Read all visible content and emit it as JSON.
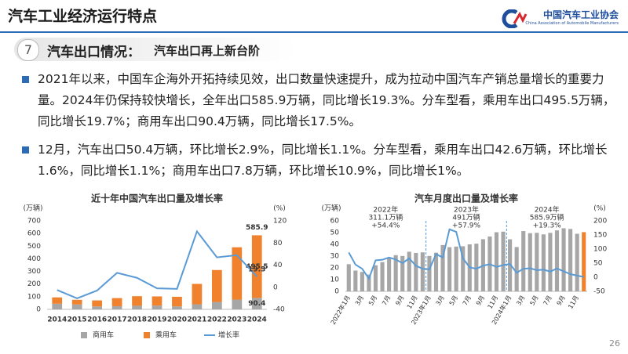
{
  "header": {
    "title": "汽车工业经济运行特点",
    "org_name": "中国汽车工业协会",
    "org_name_en": "China Association of Automobile Manufacturers"
  },
  "section": {
    "number": "7",
    "title": "汽车出口情况：",
    "subtitle": "汽车出口再上新台阶"
  },
  "bullets": [
    "2021年以来，中国车企海外开拓持续见效，出口数量快速提升，成为拉动中国汽车产销总量增长的重要力量。2024年仍保持较快增长，全年出口585.9万辆，同比增长19.3%。分车型看，乘用车出口495.5万辆，同比增长19.7%；商用车出口90.4万辆，同比增长17.5%。",
    "12月，汽车出口50.4万辆，环比增长2.9%，同比增长1.1%。分车型看，乘用车出口42.6万辆，环比增长1.6%，同比增长1.1%；商用车出口7.8万辆，环比增长10.9%，同比增长1%。"
  ],
  "chart_data": [
    {
      "type": "bar",
      "stacked": true,
      "title": "近十年中国汽车出口量及增长率",
      "y_label": "(万辆)",
      "y2_label": "(%)",
      "categories": [
        "2014",
        "2015",
        "2016",
        "2017",
        "2018",
        "2019",
        "2020",
        "2021",
        "2022",
        "2023",
        "2024"
      ],
      "series": [
        {
          "name": "商用车",
          "color": "#a6a6a6",
          "values": [
            44.6,
            38.7,
            23.1,
            25.1,
            28.3,
            29.9,
            23.5,
            40.1,
            58.2,
            77.1,
            90.4
          ]
        },
        {
          "name": "乘用车",
          "color": "#f0812d",
          "values": [
            50.1,
            36.8,
            47.7,
            64.0,
            75.8,
            72.5,
            76.0,
            161.4,
            252.9,
            414.0,
            495.5
          ]
        },
        {
          "name": "增长率",
          "color": "#5b9bd5",
          "type": "line",
          "axis": "y2",
          "values": [
            -5,
            -20,
            -6,
            26,
            17,
            -2,
            -3,
            101,
            54,
            58,
            19.3
          ]
        }
      ],
      "annotations": [
        {
          "text": "585.9"
        }
      ],
      "ylim": [
        0,
        700
      ],
      "yticks": [
        0,
        100,
        200,
        300,
        400,
        500,
        600,
        700
      ],
      "y2lim": [
        -40,
        120
      ],
      "y2ticks": [
        -40,
        0,
        40,
        80,
        120
      ],
      "legend": "bottom"
    },
    {
      "type": "bar",
      "title": "汽车月度出口量及增长率",
      "y_label": "(万辆)",
      "y2_label": "(%)",
      "categories": [
        "2022年1月",
        null,
        "3月",
        null,
        "5月",
        null,
        "7月",
        null,
        "9月",
        null,
        "11月",
        null,
        "2023年1月",
        null,
        "3月",
        null,
        "5月",
        null,
        "7月",
        null,
        "9月",
        null,
        "11月",
        null,
        "2024年1月",
        null,
        "3月",
        null,
        "5月",
        null,
        "7月",
        null,
        "9月",
        null,
        "11月",
        null
      ],
      "series": [
        {
          "color": "#a6a6a6",
          "last_color": "#f0812d",
          "values": [
            23.1,
            17.7,
            16.5,
            14.3,
            22.2,
            24.9,
            29.0,
            30.8,
            30.1,
            33.7,
            32.7,
            33.2,
            30.1,
            32.9,
            39.4,
            37.6,
            38.1,
            38.4,
            40.0,
            40.6,
            44.4,
            46.7,
            50.3,
            50.8,
            44.3,
            37.7,
            51.3,
            49.5,
            49.8,
            48.5,
            49.8,
            51.9,
            53.7,
            53.1,
            49.0,
            50.4
          ]
        },
        {
          "color": "#5b9bd5",
          "type": "line",
          "axis": "y2",
          "values": [
            88,
            45,
            30,
            -5,
            60,
            62,
            70,
            63,
            50,
            67,
            41,
            30,
            28,
            82,
            70,
            170,
            161,
            67,
            35,
            30,
            41,
            46,
            37,
            43,
            47,
            16,
            30,
            32,
            25,
            27,
            20,
            31,
            21,
            11,
            6,
            1
          ]
        }
      ],
      "annotations": [
        {
          "lines": [
            "2022年",
            "311.1万辆",
            "+54.4%"
          ]
        },
        {
          "lines": [
            "2023年",
            "491万辆",
            "+57.9%"
          ]
        },
        {
          "lines": [
            "2024年",
            "585.9万辆",
            "+19.3%"
          ]
        }
      ],
      "ylim": [
        0,
        60
      ],
      "yticks": [
        0,
        10,
        20,
        30,
        40,
        50,
        60
      ],
      "y2lim": [
        -50,
        200
      ],
      "y2ticks": [
        -50,
        0,
        50,
        100,
        150,
        200
      ]
    }
  ],
  "page_number": "26"
}
